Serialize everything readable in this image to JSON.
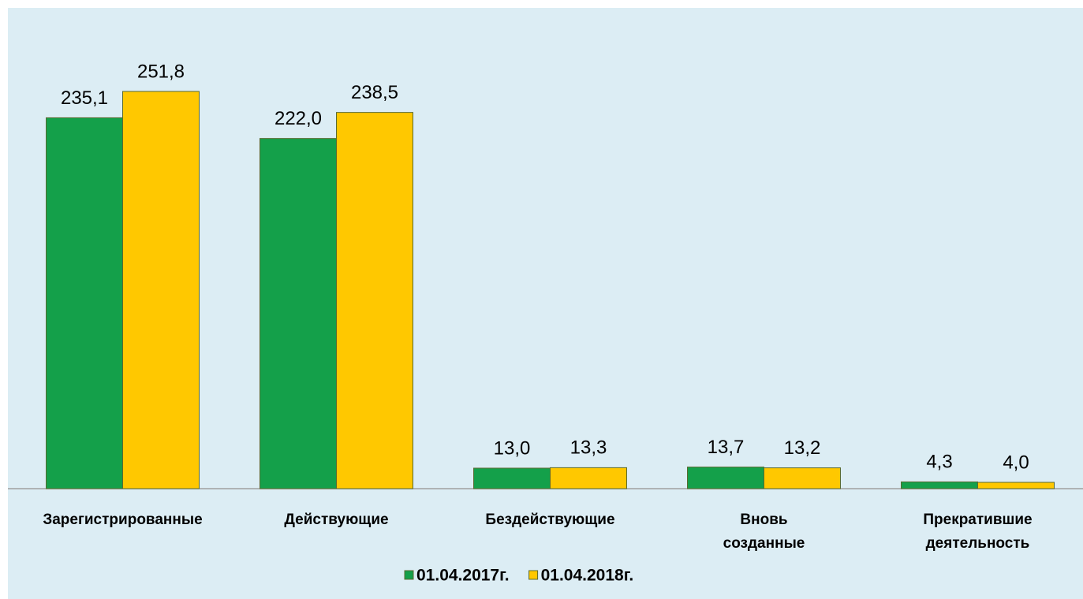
{
  "chart_data": {
    "type": "bar",
    "categories": [
      "Зарегистрированные",
      "Действующие",
      "Бездействующие",
      "Вновь созданные",
      "Прекратившие деятельность"
    ],
    "series": [
      {
        "name": "01.04.2017г.",
        "color": "#14a04a",
        "values": [
          235.1,
          222.0,
          13.0,
          13.7,
          4.3
        ],
        "value_labels": [
          "235,1",
          "222,0",
          "13,0",
          "13,7",
          "4,3"
        ]
      },
      {
        "name": "01.04.2018г.",
        "color": "#ffc800",
        "values": [
          251.8,
          238.5,
          13.3,
          13.2,
          4.0
        ],
        "value_labels": [
          "251,8",
          "238,5",
          "13,3",
          "13,2",
          "4,0"
        ]
      }
    ],
    "legend": "bottom"
  }
}
